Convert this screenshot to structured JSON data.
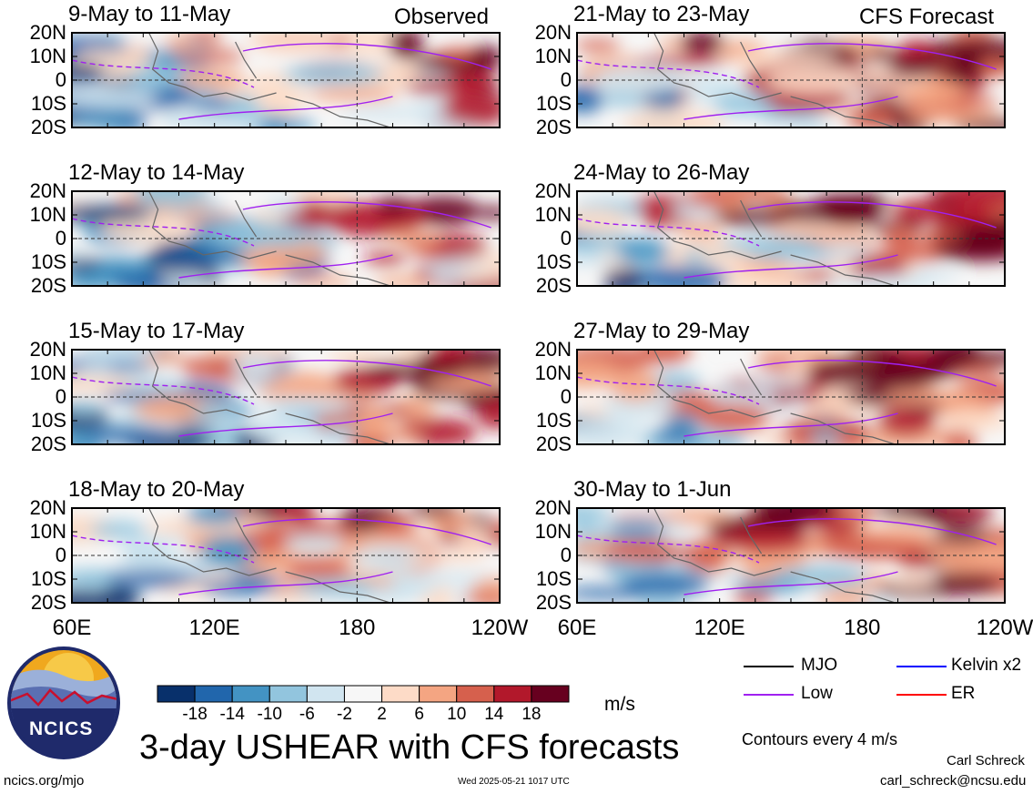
{
  "panels": [
    {
      "title": "9-May to 11-May",
      "corner": "Observed"
    },
    {
      "title": "12-May to 14-May",
      "corner": ""
    },
    {
      "title": "15-May to 17-May",
      "corner": ""
    },
    {
      "title": "18-May to 20-May",
      "corner": ""
    },
    {
      "title": "21-May to 23-May",
      "corner": "CFS Forecast"
    },
    {
      "title": "24-May to 26-May",
      "corner": ""
    },
    {
      "title": "27-May to 29-May",
      "corner": ""
    },
    {
      "title": "30-May to 1-Jun",
      "corner": ""
    }
  ],
  "lat_labels": [
    "20N",
    "10N",
    "0",
    "10S",
    "20S"
  ],
  "lon_labels": [
    "60E",
    "120E",
    "180",
    "120W"
  ],
  "colorbar": {
    "ticks": [
      "-18",
      "-14",
      "-10",
      "-6",
      "-2",
      "2",
      "6",
      "10",
      "14",
      "18"
    ],
    "colors": [
      "#08306b",
      "#2166ac",
      "#4393c3",
      "#92c5de",
      "#d1e5f0",
      "#f7f7f7",
      "#fddbc7",
      "#f4a582",
      "#d6604d",
      "#b2182b",
      "#67001f"
    ],
    "unit": "m/s"
  },
  "legend": [
    {
      "label": "MJO",
      "color": "#000000"
    },
    {
      "label": "Kelvin x2",
      "color": "#0000ff"
    },
    {
      "label": "Low",
      "color": "#a020f0"
    },
    {
      "label": "ER",
      "color": "#ff0000"
    }
  ],
  "contour_note": "Contours every 4 m/s",
  "main_title": "3-day USHEAR with CFS forecasts",
  "logo_text": "NCICS",
  "footer": {
    "url": "ncics.org/mjo",
    "timestamp": "Wed 2025-05-21 1017 UTC",
    "author": "Carl Schreck",
    "email": "carl_schreck@ncsu.edu"
  }
}
